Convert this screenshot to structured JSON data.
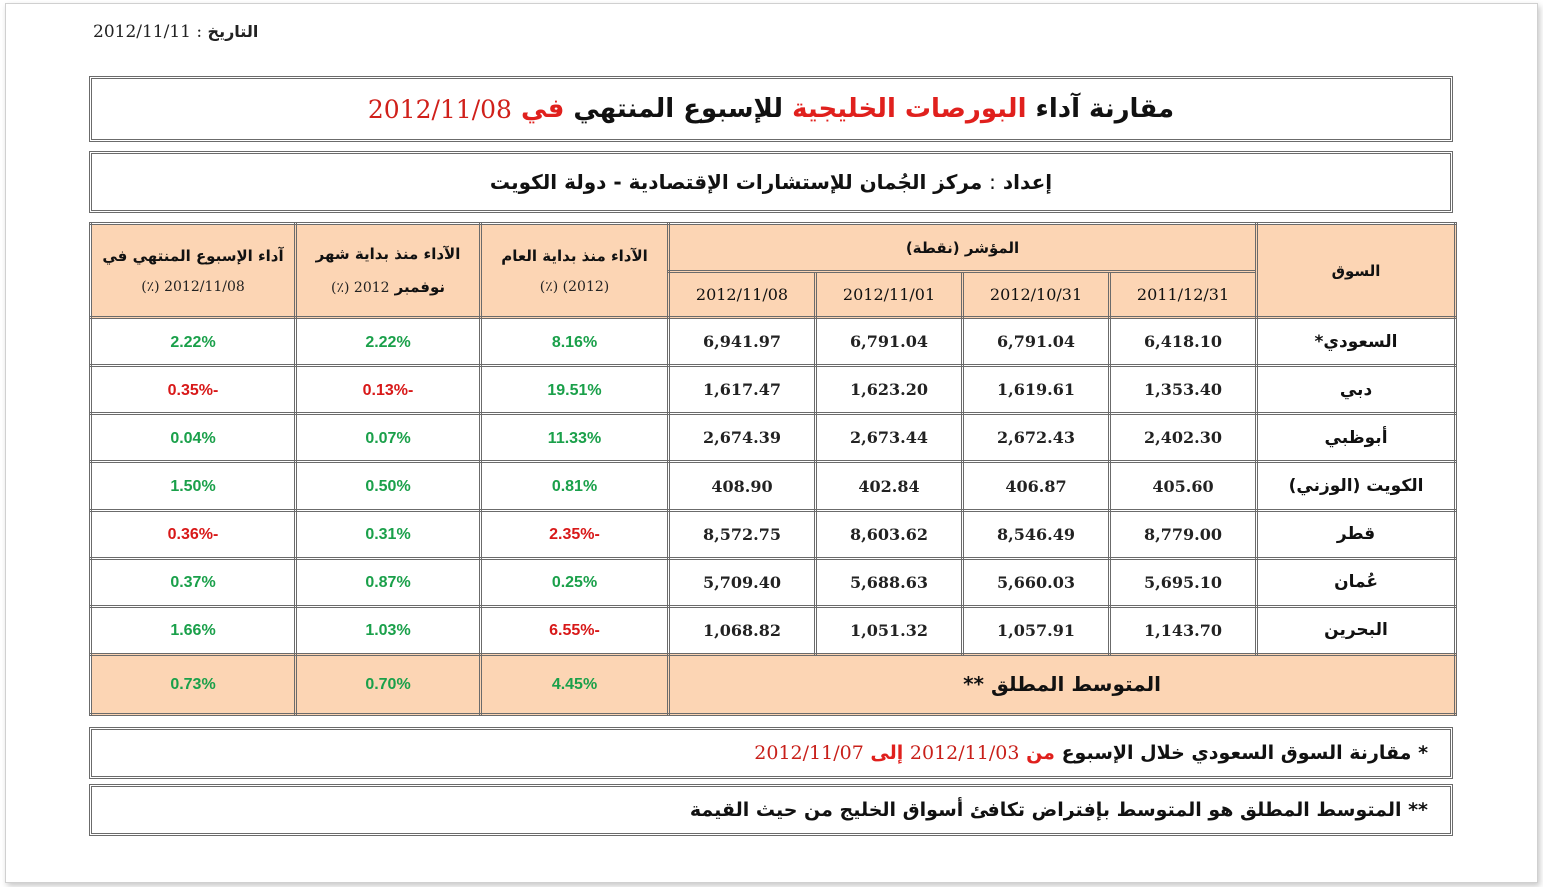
{
  "header": {
    "date_label": "التاريخ",
    "date_sep": ":",
    "date_value": "2012/11/11"
  },
  "title": {
    "part1": "مقارنة آداء",
    "part2": "البورصات الخليجية",
    "part3": "للإسبوع المنتهي",
    "part4": "في",
    "date": "2012/11/08"
  },
  "subtitle": {
    "label": "إعداد",
    "sep": ":",
    "text": "مركز الجُمان للإستشارات الإقتصادية - دولة الكويت"
  },
  "table": {
    "col_market": "السوق",
    "col_index": "المؤشر (نقطة)",
    "index_dates": [
      "2011/12/31",
      "2012/10/31",
      "2012/11/01",
      "2012/11/08"
    ],
    "col_ytd": {
      "label": "الآداء منذ بداية العام",
      "sub": "(2012) (٪)"
    },
    "col_mtd": {
      "label": "الآداء منذ بداية شهر",
      "sub_bold": "نوفمبر",
      "sub": "2012 (٪)"
    },
    "col_week": {
      "label": "آداء الإسبوع المنتهي في",
      "sub": "2012/11/08 (٪)"
    },
    "rows": [
      {
        "market": "السعودي*",
        "v": [
          "6,418.10",
          "6,791.04",
          "6,791.04",
          "6,941.97"
        ],
        "ytd": "8.16%",
        "mtd": "2.22%",
        "week": "2.22%"
      },
      {
        "market": "دبي",
        "v": [
          "1,353.40",
          "1,619.61",
          "1,623.20",
          "1,617.47"
        ],
        "ytd": "19.51%",
        "mtd": "-0.13%",
        "week": "-0.35%"
      },
      {
        "market": "أبوظبي",
        "v": [
          "2,402.30",
          "2,672.43",
          "2,673.44",
          "2,674.39"
        ],
        "ytd": "11.33%",
        "mtd": "0.07%",
        "week": "0.04%"
      },
      {
        "market": "الكويت (الوزني)",
        "v": [
          "405.60",
          "406.87",
          "402.84",
          "408.90"
        ],
        "ytd": "0.81%",
        "mtd": "0.50%",
        "week": "1.50%"
      },
      {
        "market": "قطر",
        "v": [
          "8,779.00",
          "8,546.49",
          "8,603.62",
          "8,572.75"
        ],
        "ytd": "-2.35%",
        "mtd": "0.31%",
        "week": "-0.36%"
      },
      {
        "market": "عُمان",
        "v": [
          "5,695.10",
          "5,660.03",
          "5,688.63",
          "5,709.40"
        ],
        "ytd": "0.25%",
        "mtd": "0.87%",
        "week": "0.37%"
      },
      {
        "market": "البحرين",
        "v": [
          "1,143.70",
          "1,057.91",
          "1,051.32",
          "1,068.82"
        ],
        "ytd": "-6.55%",
        "mtd": "1.03%",
        "week": "1.66%"
      }
    ],
    "avg": {
      "label": "المتوسط المطلق **",
      "ytd": "4.45%",
      "mtd": "0.70%",
      "week": "0.73%"
    }
  },
  "notes": {
    "n1_prefix": "* مقارنة السوق السعودي خلال الإسبوع",
    "n1_from": "من",
    "n1_date1": "2012/11/03",
    "n1_to": "إلى",
    "n1_date2": "2012/11/07",
    "n2": "** المتوسط المطلق هو المتوسط بإفتراض تكافئ أسواق الخليج من حيث القيمة"
  },
  "colors": {
    "header_fill": "#fcd5b4",
    "positive": "#1aa04a",
    "negative": "#d81818",
    "accent_red": "#e0201d"
  }
}
